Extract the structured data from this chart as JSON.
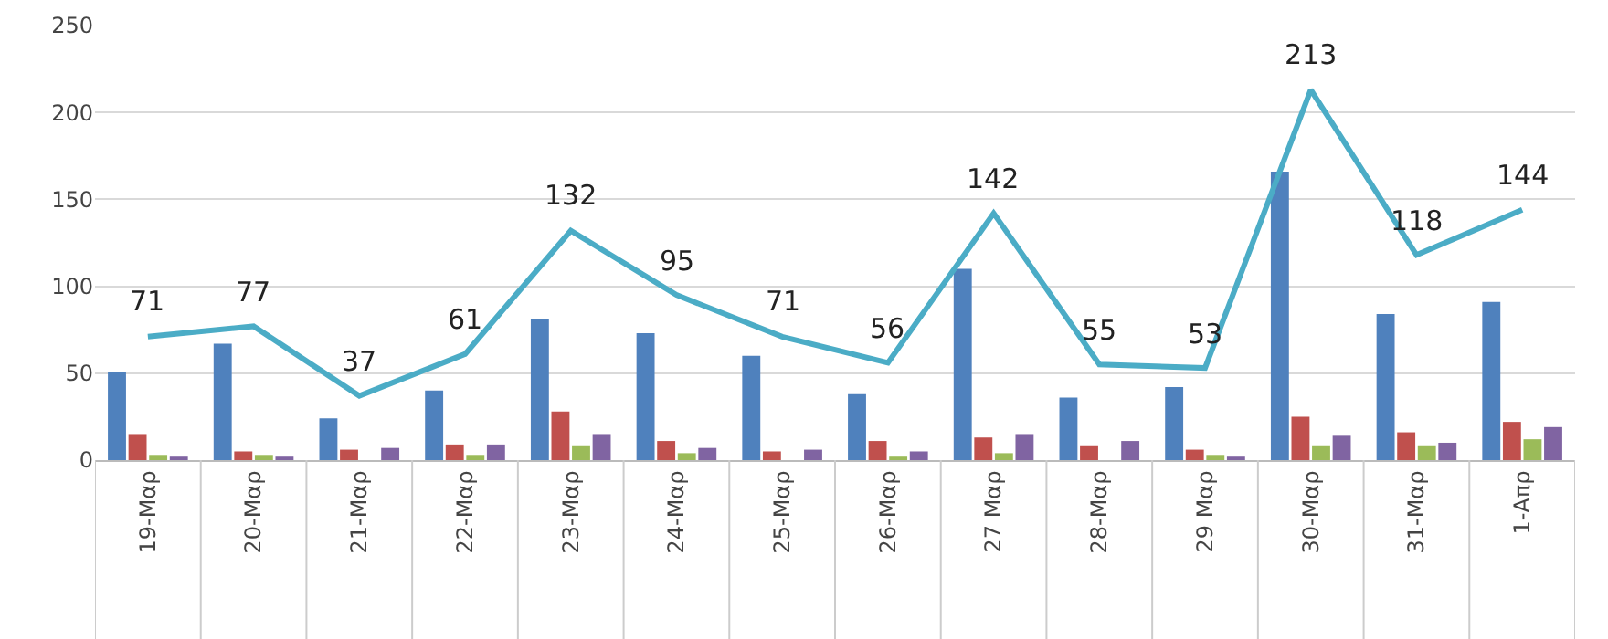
{
  "chart_data": {
    "type": "bar",
    "categories": [
      "19-Μαρ",
      "20-Μαρ",
      "21-Μαρ",
      "22-Μαρ",
      "23-Μαρ",
      "24-Μαρ",
      "25-Μαρ",
      "26-Μαρ",
      "27 Μαρ",
      "28-Μαρ",
      "29 Μαρ",
      "30-Μαρ",
      "31-Μαρ",
      "1-Απρ"
    ],
    "series": [
      {
        "color": "#4f81bd",
        "values": [
          51,
          67,
          24,
          40,
          81,
          73,
          60,
          38,
          110,
          36,
          42,
          166,
          84,
          91
        ]
      },
      {
        "color": "#c0504d",
        "values": [
          15,
          5,
          6,
          9,
          28,
          11,
          5,
          11,
          13,
          8,
          6,
          25,
          16,
          22
        ]
      },
      {
        "color": "#9bbb59",
        "values": [
          3,
          3,
          0,
          3,
          8,
          4,
          0,
          2,
          4,
          0,
          3,
          8,
          8,
          12
        ]
      },
      {
        "color": "#8064a2",
        "values": [
          2,
          2,
          7,
          9,
          15,
          7,
          6,
          5,
          15,
          11,
          2,
          14,
          10,
          19
        ]
      },
      {
        "type": "line",
        "color": "#4bacc6",
        "values": [
          71,
          77,
          37,
          61,
          132,
          95,
          71,
          56,
          142,
          55,
          53,
          213,
          118,
          144
        ],
        "value_labels": [
          "71",
          "77",
          "37",
          "61",
          "132",
          "95",
          "71",
          "56",
          "142",
          "55",
          "53",
          "213",
          "118",
          "144"
        ]
      }
    ],
    "ylim": [
      0,
      250
    ],
    "yticks": [
      0,
      50,
      100,
      150,
      200,
      250
    ],
    "grid": "y"
  }
}
